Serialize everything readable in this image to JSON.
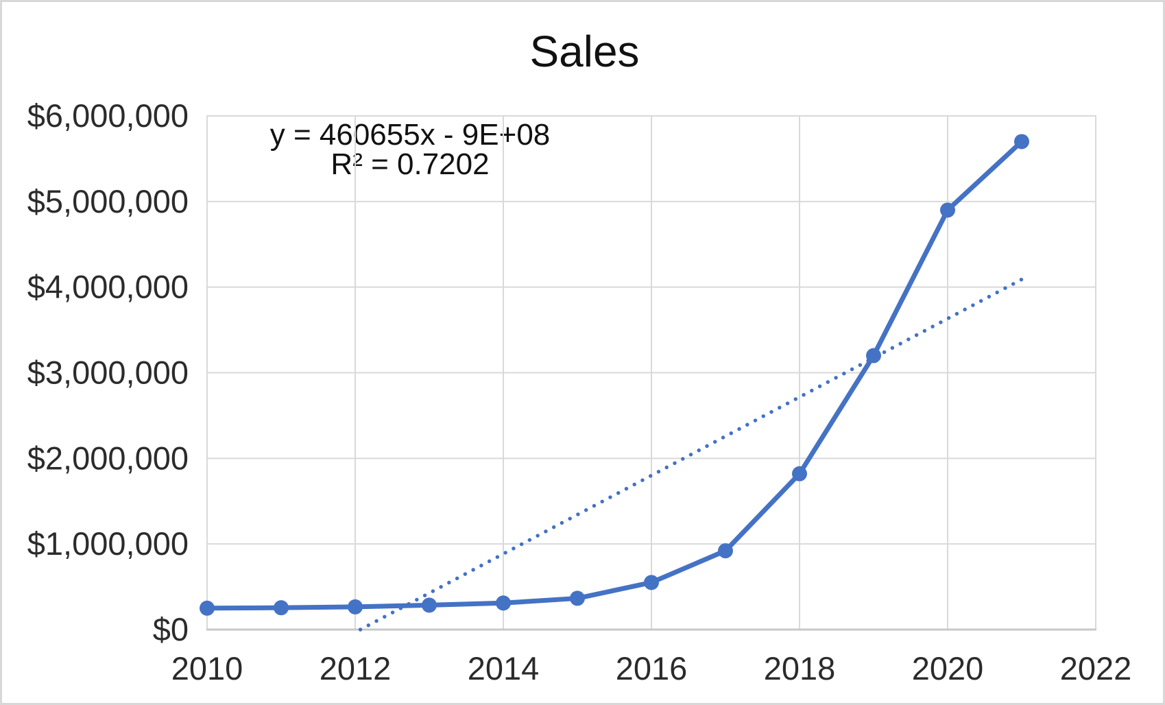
{
  "chart_data": {
    "type": "line",
    "title": "Sales",
    "x": [
      2010,
      2011,
      2012,
      2013,
      2014,
      2015,
      2016,
      2017,
      2018,
      2019,
      2020,
      2021
    ],
    "series": [
      {
        "name": "Sales",
        "values": [
          250000,
          255000,
          265000,
          285000,
          310000,
          365000,
          550000,
          920000,
          1820000,
          3200000,
          4900000,
          5700000
        ]
      }
    ],
    "xlabel": "",
    "ylabel": "",
    "xlim": [
      2010,
      2022
    ],
    "ylim": [
      0,
      6000000
    ],
    "x_tick_step": 2,
    "y_tick_step": 1000000,
    "x_tick_labels": [
      "2010",
      "2012",
      "2014",
      "2016",
      "2018",
      "2020",
      "2022"
    ],
    "x_tick_values": [
      2010,
      2012,
      2014,
      2016,
      2018,
      2020,
      2022
    ],
    "y_tick_labels": [
      "$0",
      "$1,000,000",
      "$2,000,000",
      "$3,000,000",
      "$4,000,000",
      "$5,000,000",
      "$6,000,000"
    ],
    "y_tick_values": [
      0,
      1000000,
      2000000,
      3000000,
      4000000,
      5000000,
      6000000
    ],
    "grid": true,
    "legend": "none",
    "colors": {
      "series_line": "#4472C4",
      "marker": "#4472C4",
      "trendline": "#4472C4",
      "gridline": "#D9D9D9",
      "axis_line": "#C8C8C8",
      "tick_text": "#2b2b2b",
      "title_text": "#111111"
    },
    "trendline": {
      "equation_label": "y = 460655x - 9E+08",
      "r2_label": "R² = 0.7202",
      "style": "dotted",
      "visible_start": {
        "x": 2012.07,
        "y": 0
      },
      "visible_end": {
        "x": 2021,
        "y": 4090000
      }
    }
  }
}
